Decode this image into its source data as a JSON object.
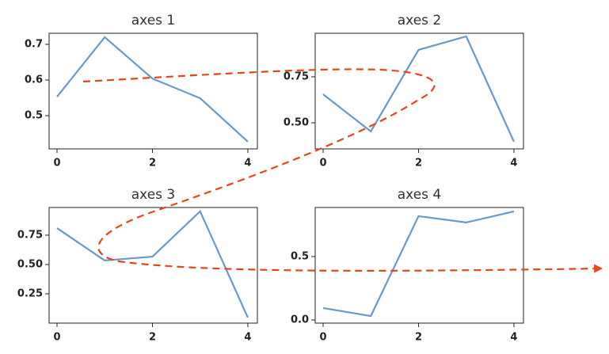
{
  "chart_data": [
    {
      "type": "line",
      "title": "axes 1",
      "x": [
        0,
        1,
        2,
        3,
        4
      ],
      "values": [
        0.553,
        0.72,
        0.604,
        0.549,
        0.427
      ],
      "color": "#6699cc",
      "xlim": [
        -0.166,
        4.2
      ],
      "ylim": [
        0.407,
        0.731
      ],
      "xticks": [
        0,
        2,
        4
      ],
      "yticks": [
        0.5,
        0.6,
        0.7
      ]
    },
    {
      "type": "line",
      "title": "axes 2",
      "x": [
        0,
        1,
        2,
        3,
        4
      ],
      "values": [
        0.655,
        0.453,
        0.897,
        0.97,
        0.397
      ],
      "color": "#6699cc",
      "xlim": [
        -0.166,
        4.2
      ],
      "ylim": [
        0.358,
        0.987
      ],
      "xticks": [
        0,
        2,
        4
      ],
      "yticks": [
        {
          "value": 0.5,
          "label": "0.50"
        },
        0.75
      ]
    },
    {
      "type": "line",
      "title": "axes 3",
      "x": [
        0,
        1,
        2,
        3,
        4
      ],
      "values": [
        0.81,
        0.534,
        0.567,
        0.953,
        0.047
      ],
      "color": "#6699cc",
      "xlim": [
        -0.166,
        4.2
      ],
      "ylim": [
        0.0,
        0.986
      ],
      "xticks": [
        0,
        2,
        4
      ],
      "yticks": [
        0.25,
        {
          "value": 0.5,
          "label": "0.50"
        },
        0.75
      ]
    },
    {
      "type": "line",
      "title": "axes 4",
      "x": [
        0,
        1,
        2,
        3,
        4
      ],
      "values": [
        0.094,
        0.031,
        0.819,
        0.769,
        0.856
      ],
      "color": "#6699cc",
      "xlim": [
        -0.166,
        4.2
      ],
      "ylim": [
        -0.025,
        0.887
      ],
      "xticks": [
        0,
        2,
        4
      ],
      "yticks": [
        {
          "value": 0,
          "label": "0.0"
        },
        0.5
      ]
    }
  ]
}
